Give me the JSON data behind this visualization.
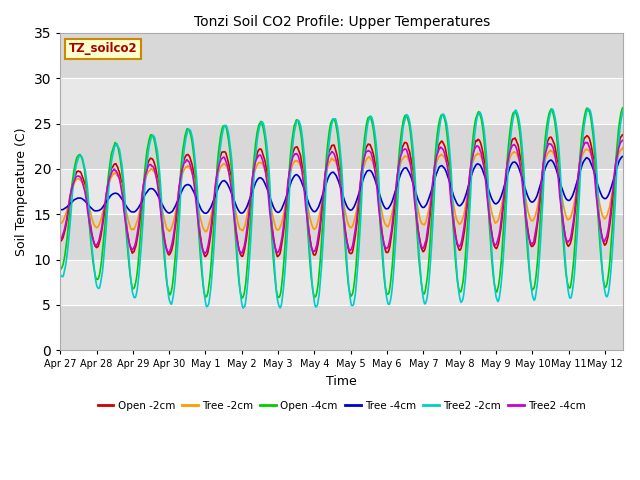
{
  "title": "Tonzi Soil CO2 Profile: Upper Temperatures",
  "xlabel": "Time",
  "ylabel": "Soil Temperature (C)",
  "ylim": [
    0,
    35
  ],
  "yticks": [
    0,
    5,
    10,
    15,
    20,
    25,
    30,
    35
  ],
  "xlim_start": 0,
  "xlim_end": 15.5,
  "background_color": "#ffffff",
  "plot_bg_color": "#e0e0e0",
  "band_colors": [
    "#d0d0d0",
    "#e0e0e0"
  ],
  "legend_label": "TZ_soilco2",
  "legend_box_color": "#ffffcc",
  "legend_box_edge": "#cc8800",
  "series": [
    {
      "label": "Open -2cm",
      "color": "#cc0000",
      "lw": 1.2
    },
    {
      "label": "Tree -2cm",
      "color": "#ff9900",
      "lw": 1.2
    },
    {
      "label": "Open -4cm",
      "color": "#00cc00",
      "lw": 1.2
    },
    {
      "label": "Tree -4cm",
      "color": "#0000cc",
      "lw": 1.2
    },
    {
      "label": "Tree2 -2cm",
      "color": "#00cccc",
      "lw": 1.2
    },
    {
      "label": "Tree2 -4cm",
      "color": "#cc00cc",
      "lw": 1.2
    }
  ],
  "x_tick_labels": [
    "Apr 27",
    "Apr 28",
    "Apr 29",
    "Apr 30",
    "May 1",
    "May 2",
    "May 3",
    "May 4",
    "May 5",
    "May 6",
    "May 7",
    "May 8",
    "May 9",
    "May 10",
    "May 11",
    "May 12"
  ],
  "x_tick_positions": [
    0,
    1,
    2,
    3,
    4,
    5,
    6,
    7,
    8,
    9,
    10,
    11,
    12,
    13,
    14,
    15
  ]
}
